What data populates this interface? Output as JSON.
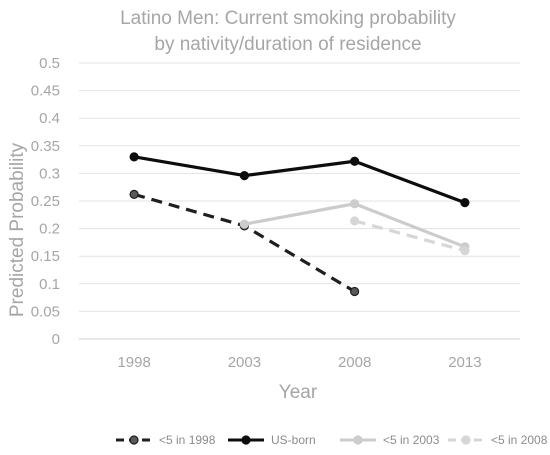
{
  "chart_data": {
    "type": "line",
    "title": "Latino Men: Current smoking probability",
    "subtitle": "by nativity/duration of residence",
    "xlabel": "Year",
    "ylabel": "Predicted Probability",
    "categories": [
      "1998",
      "2003",
      "2008",
      "2013"
    ],
    "ylim": [
      0,
      0.5
    ],
    "yticks": [
      0,
      0.05,
      0.1,
      0.15,
      0.2,
      0.25,
      0.3,
      0.35,
      0.4,
      0.45,
      0.5
    ],
    "ytick_labels": [
      "0",
      "0.05",
      "0.1",
      "0.15",
      "0.2",
      "0.25",
      "0.3",
      "0.35",
      "0.4",
      "0.45",
      "0.5"
    ],
    "grid": true,
    "legend_position": "bottom",
    "series": [
      {
        "name": "<5 in 1998",
        "values": [
          0.262,
          0.205,
          0.086,
          null
        ],
        "color": "#1f1f1f",
        "marker_fill": "#595959",
        "dashed": true
      },
      {
        "name": "US-born",
        "values": [
          0.33,
          0.296,
          0.322,
          0.247
        ],
        "color": "#0d0d0d",
        "marker_fill": "#0d0d0d",
        "dashed": false
      },
      {
        "name": "<5 in 2003",
        "values": [
          null,
          0.208,
          0.245,
          0.167
        ],
        "color": "#cccccc",
        "marker_fill": "#cccccc",
        "dashed": false
      },
      {
        "name": "<5 in 2008",
        "values": [
          null,
          null,
          0.214,
          0.16
        ],
        "color": "#d6d6d6",
        "marker_fill": "#d6d6d6",
        "dashed": true
      }
    ]
  }
}
